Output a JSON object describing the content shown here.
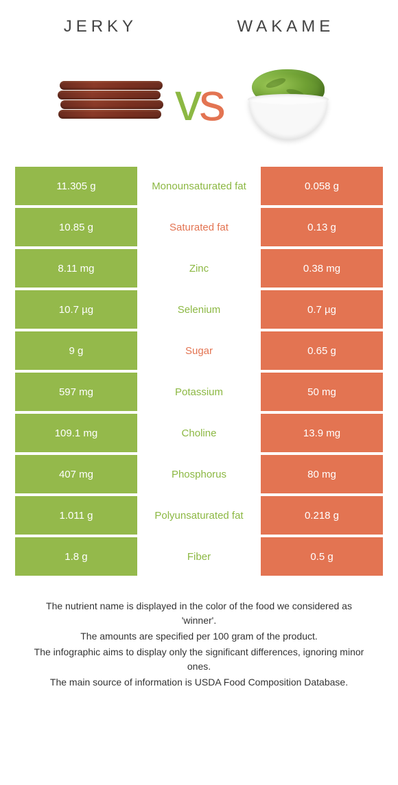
{
  "colors": {
    "left": "#94b94b",
    "right": "#e37452",
    "leftWinnerText": "#8cb843",
    "rightWinnerText": "#e37452"
  },
  "foods": {
    "left": "Jerky",
    "right": "Wakame"
  },
  "rows": [
    {
      "left": "11.305 g",
      "label": "Monounsaturated fat",
      "right": "0.058 g",
      "winner": "left"
    },
    {
      "left": "10.85 g",
      "label": "Saturated fat",
      "right": "0.13 g",
      "winner": "right"
    },
    {
      "left": "8.11 mg",
      "label": "Zinc",
      "right": "0.38 mg",
      "winner": "left"
    },
    {
      "left": "10.7 µg",
      "label": "Selenium",
      "right": "0.7 µg",
      "winner": "left"
    },
    {
      "left": "9 g",
      "label": "Sugar",
      "right": "0.65 g",
      "winner": "right"
    },
    {
      "left": "597 mg",
      "label": "Potassium",
      "right": "50 mg",
      "winner": "left"
    },
    {
      "left": "109.1 mg",
      "label": "Choline",
      "right": "13.9 mg",
      "winner": "left"
    },
    {
      "left": "407 mg",
      "label": "Phosphorus",
      "right": "80 mg",
      "winner": "left"
    },
    {
      "left": "1.011 g",
      "label": "Polyunsaturated fat",
      "right": "0.218 g",
      "winner": "left"
    },
    {
      "left": "1.8 g",
      "label": "Fiber",
      "right": "0.5 g",
      "winner": "left"
    }
  ],
  "footer": [
    "The nutrient name is displayed in the color of the food we considered as 'winner'.",
    "The amounts are specified per 100 gram of the product.",
    "The infographic aims to display only the significant differences, ignoring minor ones.",
    "The main source of information is USDA Food Composition Database."
  ]
}
